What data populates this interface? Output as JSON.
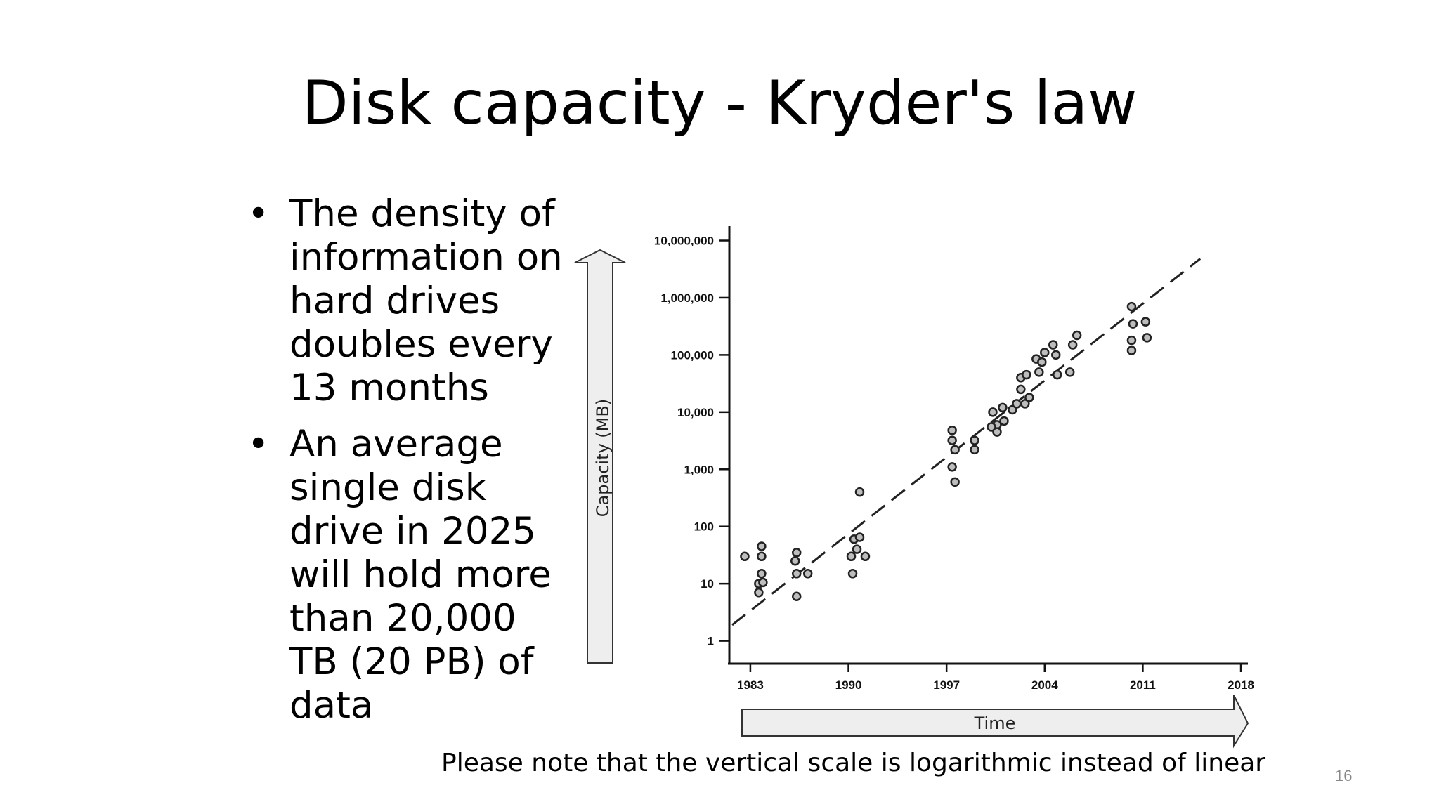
{
  "slide": {
    "title": "Disk capacity - Kryder's law",
    "bullets": [
      "The density of information on hard drives doubles every 13 months",
      "An average single disk drive in 2025 will hold more than 20,000 TB (20 PB) of data"
    ],
    "bullet_symbol": "•",
    "note": "Please note that the vertical scale is logarithmic instead of linear",
    "page_number": "16"
  },
  "chart_data": {
    "type": "scatter",
    "title": "",
    "xlabel": "Time",
    "ylabel": "Capacity (MB)",
    "y_scale": "log",
    "xlim": [
      1981.5,
      2018.5
    ],
    "ylim": [
      0.4,
      20000000
    ],
    "x_ticks": [
      1983,
      1990,
      1997,
      2004,
      2011,
      2018
    ],
    "x_tick_labels": [
      "1983",
      "1990",
      "1997",
      "2004",
      "2011",
      "2018"
    ],
    "y_ticks": [
      1,
      10,
      100,
      1000,
      10000,
      100000,
      1000000,
      10000000
    ],
    "y_tick_labels": [
      "1",
      "10",
      "100",
      "1,000",
      "10,000",
      "100,000",
      "1,000,000",
      "10,000,000"
    ],
    "grid": false,
    "colors": {
      "points": "#555555",
      "trend": "#222222",
      "axis": "#111111",
      "arrow_fill": "#eeeeee"
    },
    "series": [
      {
        "type": "scatter",
        "points": [
          [
            1982.6,
            30
          ],
          [
            1983.8,
            45
          ],
          [
            1983.8,
            30
          ],
          [
            1983.8,
            15
          ],
          [
            1983.6,
            10
          ],
          [
            1983.9,
            10.5
          ],
          [
            1983.6,
            7
          ],
          [
            1986.3,
            35
          ],
          [
            1986.2,
            25
          ],
          [
            1986.3,
            15
          ],
          [
            1987.1,
            15
          ],
          [
            1986.3,
            6
          ],
          [
            1990.2,
            30
          ],
          [
            1990.3,
            15
          ],
          [
            1990.4,
            60
          ],
          [
            1990.8,
            65
          ],
          [
            1990.6,
            40
          ],
          [
            1991.2,
            30
          ],
          [
            1990.8,
            400
          ],
          [
            1997.4,
            4800
          ],
          [
            1997.4,
            3200
          ],
          [
            1997.6,
            2200
          ],
          [
            1997.4,
            1100
          ],
          [
            1997.6,
            600
          ],
          [
            1999.0,
            3200
          ],
          [
            1999.0,
            2200
          ],
          [
            2000.3,
            10000
          ],
          [
            2000.6,
            6000
          ],
          [
            2000.2,
            5500
          ],
          [
            2000.6,
            4500
          ],
          [
            2001.0,
            12000
          ],
          [
            2001.1,
            7000
          ],
          [
            2001.7,
            11000
          ],
          [
            2002.0,
            14000
          ],
          [
            2002.3,
            40000
          ],
          [
            2002.3,
            25000
          ],
          [
            2002.6,
            14000
          ],
          [
            2002.7,
            45000
          ],
          [
            2002.9,
            18000
          ],
          [
            2003.4,
            85000
          ],
          [
            2003.6,
            50000
          ],
          [
            2003.8,
            75000
          ],
          [
            2004.0,
            110000
          ],
          [
            2004.6,
            150000
          ],
          [
            2004.8,
            100000
          ],
          [
            2004.9,
            45000
          ],
          [
            2005.8,
            50000
          ],
          [
            2006.0,
            150000
          ],
          [
            2006.3,
            220000
          ],
          [
            2010.2,
            700000
          ],
          [
            2010.3,
            350000
          ],
          [
            2010.2,
            180000
          ],
          [
            2010.2,
            120000
          ],
          [
            2011.2,
            380000
          ],
          [
            2011.3,
            200000
          ]
        ]
      },
      {
        "type": "line",
        "style": "dashed",
        "points": [
          [
            1981.7,
            1.9
          ],
          [
            2015.1,
            4800000
          ]
        ]
      }
    ]
  }
}
